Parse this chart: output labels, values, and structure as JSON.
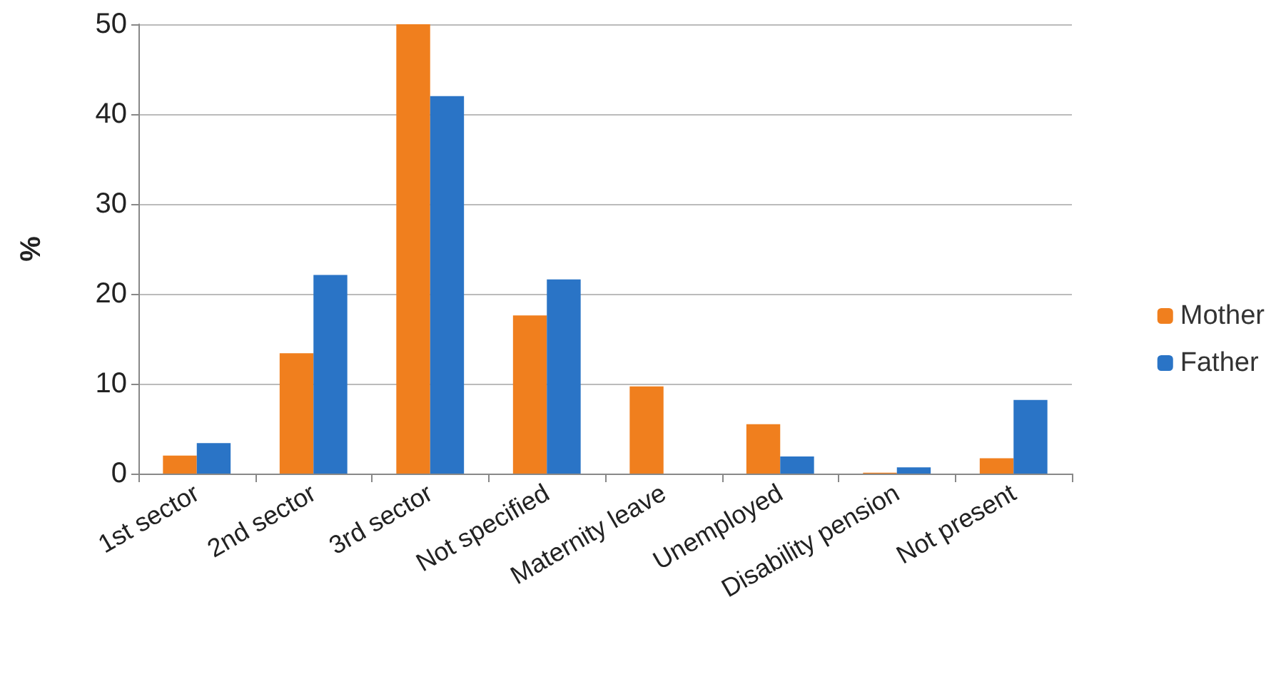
{
  "chart_data": {
    "type": "bar",
    "ylabel": "%",
    "categories": [
      "1st sector",
      "2nd sector",
      "3rd sector",
      "Not specified",
      "Maternity leave",
      "Unemployed",
      "Disability pension",
      "Not present"
    ],
    "series": [
      {
        "name": "Mother",
        "color": "#f07f1e",
        "values": [
          2,
          13.4,
          50,
          17.6,
          9.7,
          5.5,
          0.1,
          1.7
        ]
      },
      {
        "name": "Father",
        "color": "#2a74c6",
        "values": [
          3.4,
          22.1,
          42,
          21.6,
          0,
          1.9,
          0.7,
          8.2
        ]
      }
    ],
    "ylim": [
      0,
      50
    ],
    "yticks": [
      0,
      10,
      20,
      30,
      40,
      50
    ],
    "grid": "y",
    "legend": "right"
  }
}
